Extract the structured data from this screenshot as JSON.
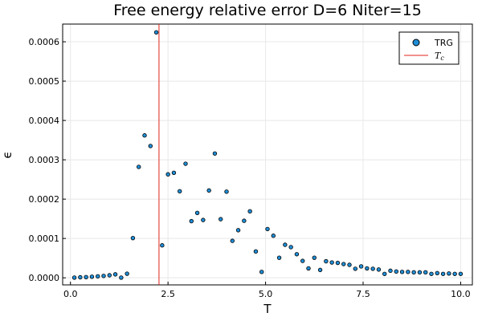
{
  "chart_data": {
    "type": "scatter",
    "title": "Free energy relative error D=6 Niter=15",
    "xlabel": "T",
    "ylabel": "ϵ",
    "xlim": [
      -0.2,
      10.3
    ],
    "ylim": [
      -1.8e-05,
      0.000645
    ],
    "xticks": [
      0.0,
      2.5,
      5.0,
      7.5,
      10.0
    ],
    "xtick_labels": [
      "0.0",
      "2.5",
      "5.0",
      "7.5",
      "10.0"
    ],
    "yticks": [
      0.0,
      0.0001,
      0.0002,
      0.0003,
      0.0004,
      0.0005,
      0.0006
    ],
    "ytick_labels": [
      "0.0000",
      "0.0001",
      "0.0002",
      "0.0003",
      "0.0004",
      "0.0005",
      "0.0006"
    ],
    "grid": true,
    "legend_position": "top-right",
    "series": [
      {
        "name": "TRG",
        "color": "#1f8dd6",
        "x": [
          0.1,
          0.25,
          0.4,
          0.55,
          0.7,
          0.85,
          1.0,
          1.15,
          1.3,
          1.45,
          1.6,
          1.75,
          1.9,
          2.05,
          2.2,
          2.35,
          2.5,
          2.65,
          2.8,
          2.95,
          3.1,
          3.25,
          3.4,
          3.55,
          3.7,
          3.85,
          4.0,
          4.15,
          4.3,
          4.45,
          4.6,
          4.75,
          4.9,
          5.05,
          5.2,
          5.35,
          5.5,
          5.65,
          5.8,
          5.95,
          6.1,
          6.25,
          6.4,
          6.55,
          6.7,
          6.85,
          7.0,
          7.15,
          7.3,
          7.45,
          7.6,
          7.75,
          7.9,
          8.05,
          8.2,
          8.35,
          8.5,
          8.65,
          8.8,
          8.95,
          9.1,
          9.25,
          9.4,
          9.55,
          9.7,
          9.85,
          10.0
        ],
        "y": [
          5e-07,
          1.4e-06,
          1.8e-06,
          2.8e-06,
          3.8e-06,
          4.8e-06,
          6.5e-06,
          8.8e-06,
          5e-07,
          1.05e-05,
          0.000101,
          0.000282,
          0.000362,
          0.000335,
          0.000624,
          8.25e-05,
          0.000263,
          0.000267,
          0.00022,
          0.00029,
          0.000144,
          0.000165,
          0.000147,
          0.000222,
          0.000316,
          0.000149,
          0.000219,
          9.4e-05,
          0.000121,
          0.000145,
          0.000169,
          6.7e-05,
          1.5e-05,
          0.000124,
          0.000107,
          5.1e-05,
          8.4e-05,
          7.8e-05,
          6e-05,
          4.3e-05,
          2.4e-05,
          5.1e-05,
          2e-05,
          4.2e-05,
          3.9e-05,
          3.8e-05,
          3.5e-05,
          3.3e-05,
          2.3e-05,
          2.9e-05,
          2.4e-05,
          2.3e-05,
          2.1e-05,
          1e-05,
          1.8e-05,
          1.6e-05,
          1.5e-05,
          1.5e-05,
          1.4e-05,
          1.4e-05,
          1.4e-05,
          1e-05,
          1.2e-05,
          1e-05,
          1.1e-05,
          1e-05,
          1e-05
        ]
      },
      {
        "name": "T_c",
        "color": "#e0241b",
        "vline_x": 2.269
      }
    ]
  },
  "legend": {
    "series_label": "TRG",
    "line_label_main": "T",
    "line_label_sub": "c"
  }
}
